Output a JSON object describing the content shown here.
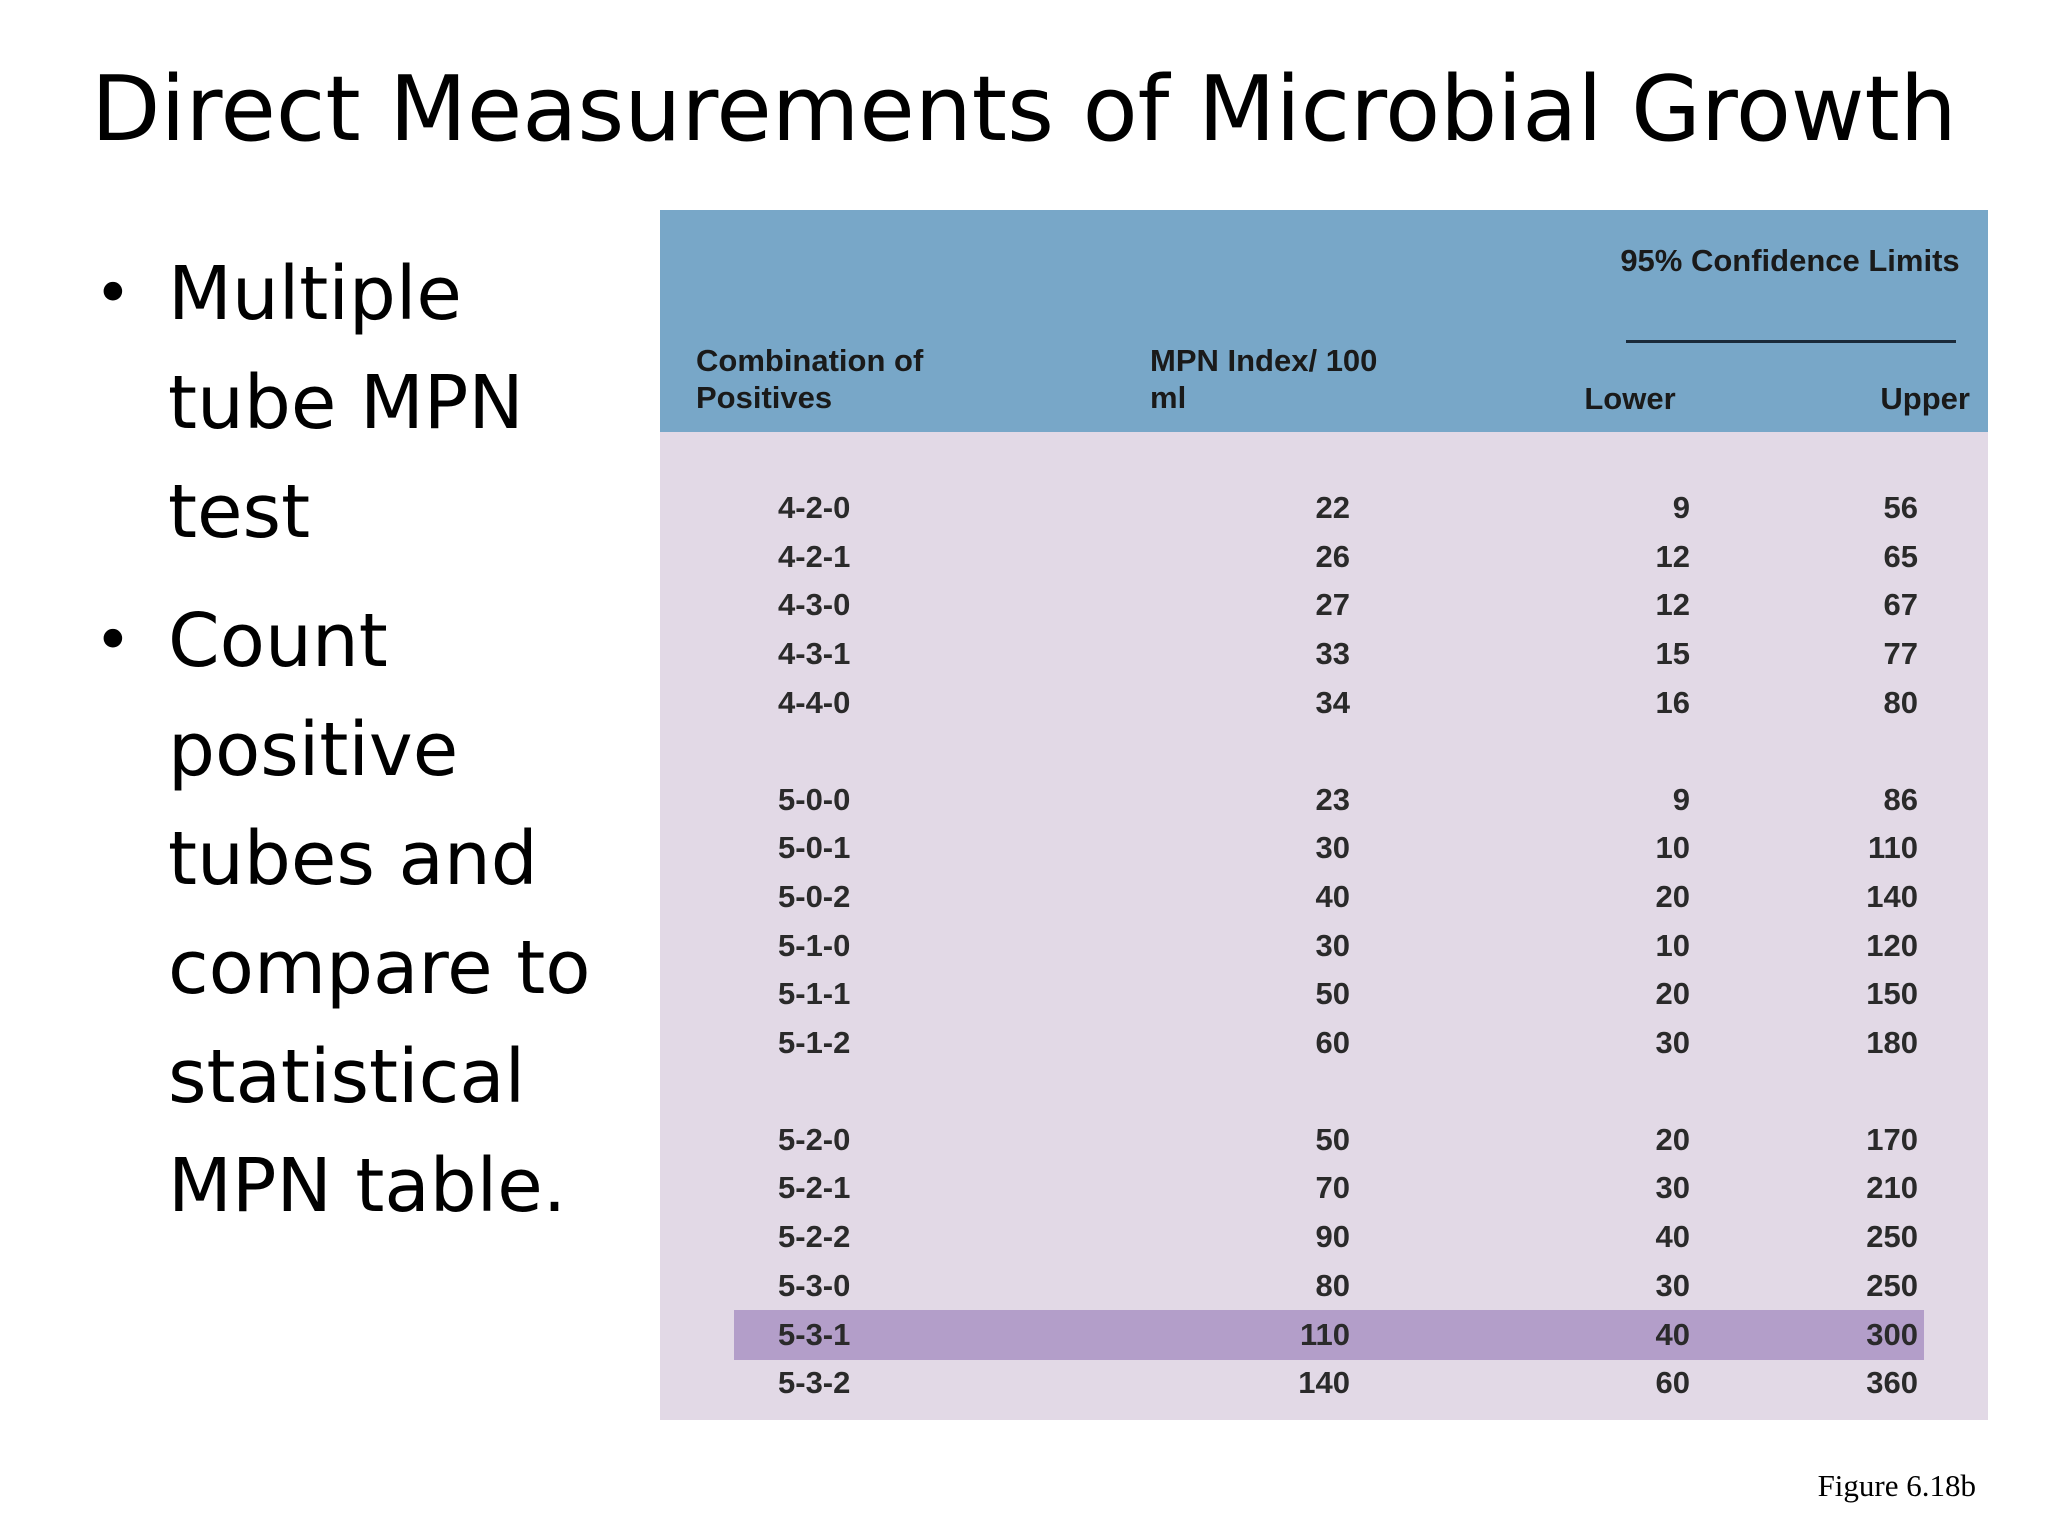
{
  "slide": {
    "title": "Direct Measurements of Microbial Growth",
    "bullets": [
      "Multiple tube MPN test",
      "Count positive tubes and compare to statistical MPN table."
    ],
    "bullet_symbol": "•",
    "caption": "Figure 6.18b"
  },
  "table": {
    "header": {
      "combination": "Combination of Positives",
      "mpn_index": "MPN Index/ 100 ml",
      "confidence_group": "95% Confidence Limits",
      "lower": "Lower",
      "upper": "Upper"
    },
    "highlighted_row": "5-3-1",
    "colors": {
      "header_background": "#78a7c8",
      "body_background": "#e2d9e6",
      "highlight": "#b39ec9"
    },
    "groups": [
      [
        {
          "combination": "4-2-0",
          "mpn": "22",
          "lower": "9",
          "upper": "56"
        },
        {
          "combination": "4-2-1",
          "mpn": "26",
          "lower": "12",
          "upper": "65"
        },
        {
          "combination": "4-3-0",
          "mpn": "27",
          "lower": "12",
          "upper": "67"
        },
        {
          "combination": "4-3-1",
          "mpn": "33",
          "lower": "15",
          "upper": "77"
        },
        {
          "combination": "4-4-0",
          "mpn": "34",
          "lower": "16",
          "upper": "80"
        }
      ],
      [
        {
          "combination": "5-0-0",
          "mpn": "23",
          "lower": "9",
          "upper": "86"
        },
        {
          "combination": "5-0-1",
          "mpn": "30",
          "lower": "10",
          "upper": "110"
        },
        {
          "combination": "5-0-2",
          "mpn": "40",
          "lower": "20",
          "upper": "140"
        },
        {
          "combination": "5-1-0",
          "mpn": "30",
          "lower": "10",
          "upper": "120"
        },
        {
          "combination": "5-1-1",
          "mpn": "50",
          "lower": "20",
          "upper": "150"
        },
        {
          "combination": "5-1-2",
          "mpn": "60",
          "lower": "30",
          "upper": "180"
        }
      ],
      [
        {
          "combination": "5-2-0",
          "mpn": "50",
          "lower": "20",
          "upper": "170"
        },
        {
          "combination": "5-2-1",
          "mpn": "70",
          "lower": "30",
          "upper": "210"
        },
        {
          "combination": "5-2-2",
          "mpn": "90",
          "lower": "40",
          "upper": "250"
        },
        {
          "combination": "5-3-0",
          "mpn": "80",
          "lower": "30",
          "upper": "250"
        },
        {
          "combination": "5-3-1",
          "mpn": "110",
          "lower": "40",
          "upper": "300"
        },
        {
          "combination": "5-3-2",
          "mpn": "140",
          "lower": "60",
          "upper": "360"
        }
      ]
    ]
  }
}
